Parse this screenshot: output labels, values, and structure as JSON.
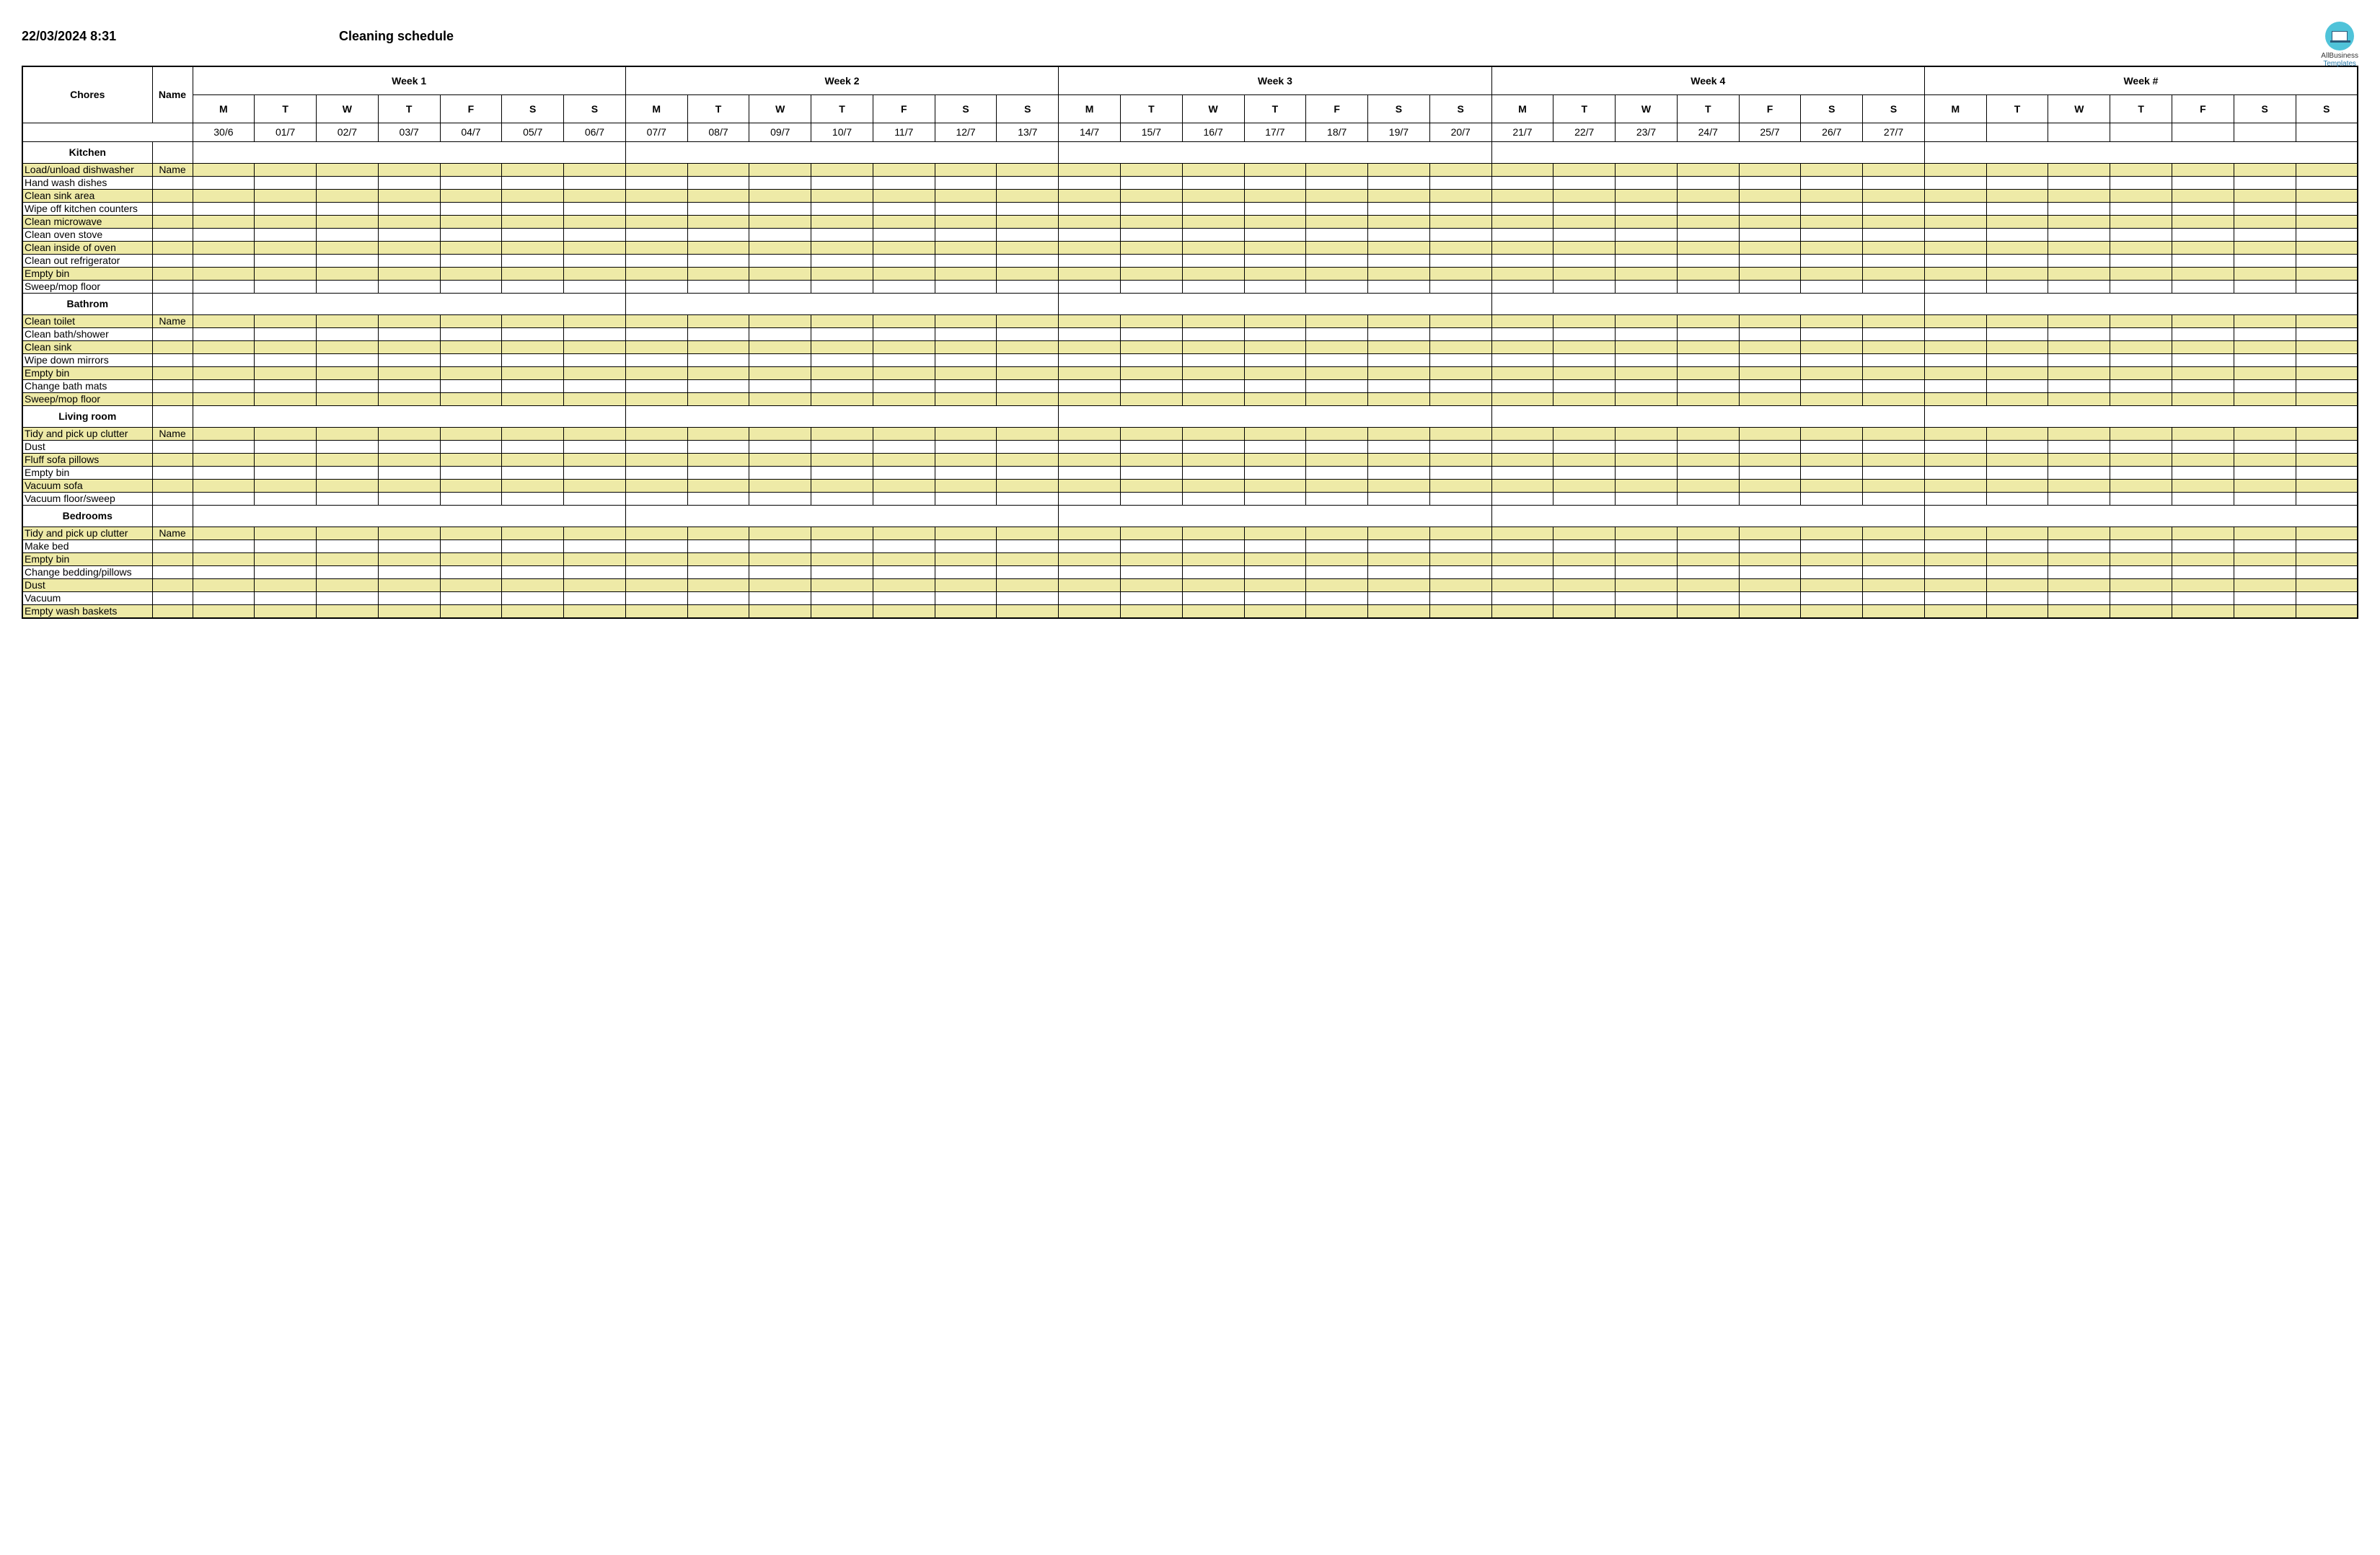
{
  "header": {
    "timestamp": "22/03/2024 8:31",
    "title": "Cleaning schedule",
    "logo_line1": "AllBusiness",
    "logo_line2": "Templates"
  },
  "columns": {
    "chores": "Chores",
    "name": "Name"
  },
  "weeks": [
    {
      "label": "Week 1",
      "dates": [
        "30/6",
        "01/7",
        "02/7",
        "03/7",
        "04/7",
        "05/7",
        "06/7"
      ]
    },
    {
      "label": "Week 2",
      "dates": [
        "07/7",
        "08/7",
        "09/7",
        "10/7",
        "11/7",
        "12/7",
        "13/7"
      ]
    },
    {
      "label": "Week 3",
      "dates": [
        "14/7",
        "15/7",
        "16/7",
        "17/7",
        "18/7",
        "19/7",
        "20/7"
      ]
    },
    {
      "label": "Week 4",
      "dates": [
        "21/7",
        "22/7",
        "23/7",
        "24/7",
        "25/7",
        "26/7",
        "27/7"
      ]
    },
    {
      "label": "Week #",
      "dates": [
        "",
        "",
        "",
        "",
        "",
        "",
        ""
      ]
    }
  ],
  "days_of_week": [
    "M",
    "T",
    "W",
    "T",
    "F",
    "S",
    "S"
  ],
  "sections": [
    {
      "title": "Kitchen",
      "chores": [
        {
          "label": "Load/unload dishwasher",
          "name": "Name",
          "shaded": true
        },
        {
          "label": "Hand wash dishes",
          "name": "",
          "shaded": false
        },
        {
          "label": "Clean sink area",
          "name": "",
          "shaded": true
        },
        {
          "label": "Wipe off kitchen counters",
          "name": "",
          "shaded": false
        },
        {
          "label": "Clean microwave",
          "name": "",
          "shaded": true
        },
        {
          "label": "Clean oven stove",
          "name": "",
          "shaded": false
        },
        {
          "label": "Clean inside of oven",
          "name": "",
          "shaded": true
        },
        {
          "label": "Clean out refrigerator",
          "name": "",
          "shaded": false
        },
        {
          "label": "Empty bin",
          "name": "",
          "shaded": true
        },
        {
          "label": "Sweep/mop floor",
          "name": "",
          "shaded": false
        }
      ]
    },
    {
      "title": "Bathrom",
      "chores": [
        {
          "label": "Clean toilet",
          "name": "Name",
          "shaded": true
        },
        {
          "label": "Clean bath/shower",
          "name": "",
          "shaded": false
        },
        {
          "label": "Clean sink",
          "name": "",
          "shaded": true
        },
        {
          "label": "Wipe down mirrors",
          "name": "",
          "shaded": false
        },
        {
          "label": "Empty bin",
          "name": "",
          "shaded": true
        },
        {
          "label": "Change bath mats",
          "name": "",
          "shaded": false
        },
        {
          "label": "Sweep/mop floor",
          "name": "",
          "shaded": true
        }
      ]
    },
    {
      "title": "Living room",
      "chores": [
        {
          "label": "Tidy and pick up clutter",
          "name": "Name",
          "shaded": true
        },
        {
          "label": "Dust",
          "name": "",
          "shaded": false
        },
        {
          "label": "Fluff sofa pillows",
          "name": "",
          "shaded": true
        },
        {
          "label": "Empty bin",
          "name": "",
          "shaded": false
        },
        {
          "label": "Vacuum sofa",
          "name": "",
          "shaded": true
        },
        {
          "label": "Vacuum floor/sweep",
          "name": "",
          "shaded": false
        }
      ]
    },
    {
      "title": "Bedrooms",
      "chores": [
        {
          "label": "Tidy and pick up clutter",
          "name": "Name",
          "shaded": true
        },
        {
          "label": "Make bed",
          "name": "",
          "shaded": false
        },
        {
          "label": "Empty bin",
          "name": "",
          "shaded": true
        },
        {
          "label": "Change bedding/pillows",
          "name": "",
          "shaded": false
        },
        {
          "label": "Dust",
          "name": "",
          "shaded": true
        },
        {
          "label": "Vacuum",
          "name": "",
          "shaded": false
        },
        {
          "label": "Empty wash baskets",
          "name": "",
          "shaded": true
        }
      ]
    }
  ],
  "colors": {
    "shade": "#eeeaa7",
    "border": "#000000",
    "background": "#ffffff",
    "logo_circle": "#4fc3d9"
  }
}
